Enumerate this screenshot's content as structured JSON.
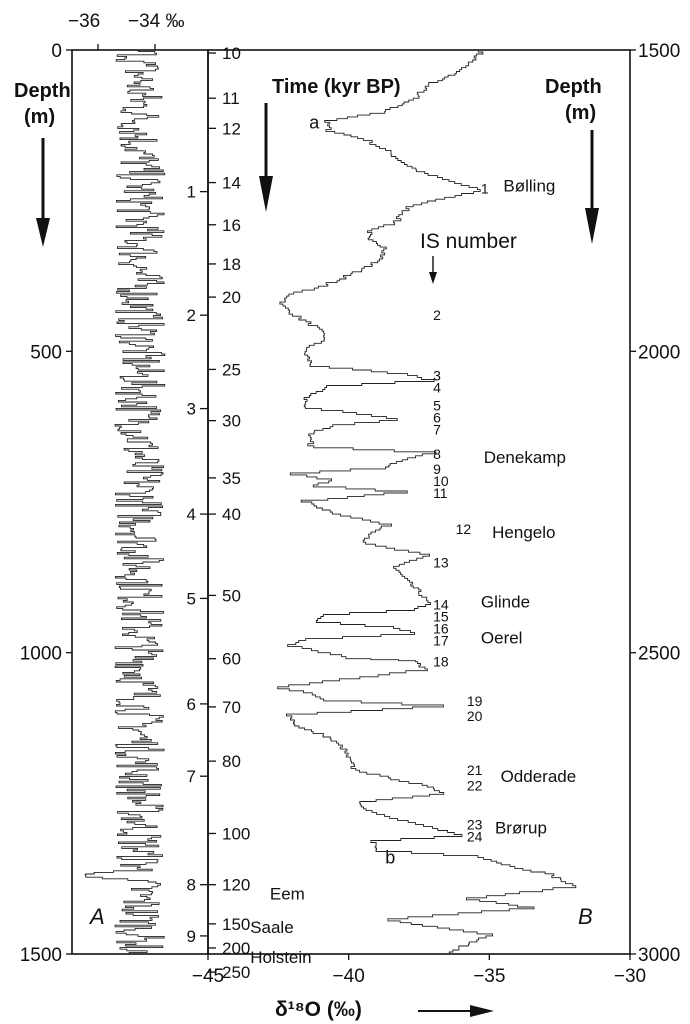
{
  "chart_data": {
    "type": "line",
    "panels": [
      {
        "letter": "A",
        "top_axis_labels": [
          "−36",
          "−34 ‰"
        ],
        "left_axis_title_line1": "Depth",
        "left_axis_title_line2": "(m)",
        "depth_ticks": [
          0,
          500,
          1000,
          1500
        ],
        "depth_range": [
          0,
          1500
        ],
        "delta_range": [
          -38,
          -32
        ]
      },
      {
        "letter": "B",
        "right_axis_title_line1": "Depth",
        "right_axis_title_line2": "(m)",
        "time_axis_title": "Time (kyr BP)",
        "depth_ticks": [
          1500,
          2000,
          2500,
          3000
        ],
        "depth_range": [
          1500,
          3000
        ],
        "delta_ticks": [
          "−45",
          "−40",
          "−35",
          "−30"
        ],
        "delta_range": [
          -45,
          -30
        ],
        "xlabel": "δ¹⁸O (‰)",
        "age_ticks": [
          {
            "label": "10",
            "depth": 1505
          },
          {
            "label": "11",
            "depth": 1580
          },
          {
            "label": "12",
            "depth": 1630
          },
          {
            "label": "14",
            "depth": 1720
          },
          {
            "label": "16",
            "depth": 1790
          },
          {
            "label": "18",
            "depth": 1855
          },
          {
            "label": "20",
            "depth": 1910
          },
          {
            "label": "25",
            "depth": 2030
          },
          {
            "label": "30",
            "depth": 2115
          },
          {
            "label": "35",
            "depth": 2210
          },
          {
            "label": "40",
            "depth": 2270
          },
          {
            "label": "50",
            "depth": 2405
          },
          {
            "label": "60",
            "depth": 2510
          },
          {
            "label": "70",
            "depth": 2590
          },
          {
            "label": "80",
            "depth": 2680
          },
          {
            "label": "100",
            "depth": 2800
          },
          {
            "label": "120",
            "depth": 2885
          },
          {
            "label": "150",
            "depth": 2950
          },
          {
            "label": "200",
            "depth": 2990
          },
          {
            "label": "250",
            "depth": 3030
          }
        ],
        "meter_labels": [
          {
            "label": "1",
            "depth": 1735
          },
          {
            "label": "2",
            "depth": 1940
          },
          {
            "label": "3",
            "depth": 2095
          },
          {
            "label": "4",
            "depth": 2270
          },
          {
            "label": "5",
            "depth": 2410
          },
          {
            "label": "6",
            "depth": 2585
          },
          {
            "label": "7",
            "depth": 2705
          },
          {
            "label": "8",
            "depth": 2885
          },
          {
            "label": "9",
            "depth": 2970
          }
        ],
        "is_number_heading": "IS number",
        "interstadials": [
          {
            "label": "1",
            "depth": 1730,
            "delta": -35.3
          },
          {
            "label": "2",
            "depth": 1940,
            "delta": -37.0
          },
          {
            "label": "3",
            "depth": 2040,
            "delta": -37.0
          },
          {
            "label": "4",
            "depth": 2060,
            "delta": -37.0
          },
          {
            "label": "5",
            "depth": 2090,
            "delta": -37.0
          },
          {
            "label": "6",
            "depth": 2110,
            "delta": -37.0
          },
          {
            "label": "7",
            "depth": 2130,
            "delta": -37.0
          },
          {
            "label": "8",
            "depth": 2170,
            "delta": -37.0
          },
          {
            "label": "9",
            "depth": 2195,
            "delta": -37.0
          },
          {
            "label": "10",
            "depth": 2215,
            "delta": -37.0
          },
          {
            "label": "11",
            "depth": 2235,
            "delta": -37.0
          },
          {
            "label": "12",
            "depth": 2295,
            "delta": -36.2
          },
          {
            "label": "13",
            "depth": 2350,
            "delta": -37.0
          },
          {
            "label": "14",
            "depth": 2420,
            "delta": -37.0
          },
          {
            "label": "15",
            "depth": 2440,
            "delta": -37.0
          },
          {
            "label": "16",
            "depth": 2460,
            "delta": -37.0
          },
          {
            "label": "17",
            "depth": 2480,
            "delta": -37.0
          },
          {
            "label": "18",
            "depth": 2515,
            "delta": -37.0
          },
          {
            "label": "19",
            "depth": 2580,
            "delta": -35.8
          },
          {
            "label": "20",
            "depth": 2605,
            "delta": -35.8
          },
          {
            "label": "21",
            "depth": 2695,
            "delta": -35.8
          },
          {
            "label": "22",
            "depth": 2720,
            "delta": -35.8
          },
          {
            "label": "23",
            "depth": 2785,
            "delta": -35.8
          },
          {
            "label": "24",
            "depth": 2805,
            "delta": -35.8
          }
        ],
        "period_names": [
          {
            "label": "Bølling",
            "depth": 1725,
            "delta": -34.5
          },
          {
            "label": "Denekamp",
            "depth": 2175,
            "delta": -35.2
          },
          {
            "label": "Hengelo",
            "depth": 2300,
            "delta": -34.9
          },
          {
            "label": "Glinde",
            "depth": 2415,
            "delta": -35.3
          },
          {
            "label": "Oerel",
            "depth": 2475,
            "delta": -35.3
          },
          {
            "label": "Odderade",
            "depth": 2705,
            "delta": -34.6
          },
          {
            "label": "Brørup",
            "depth": 2790,
            "delta": -34.8
          },
          {
            "label": "Eem",
            "depth": 2900,
            "delta": -42.8
          },
          {
            "label": "Saale",
            "depth": 2955,
            "delta": -43.5
          },
          {
            "label": "Holstein",
            "depth": 3005,
            "delta": -43.5
          }
        ],
        "markers": [
          {
            "label": "a",
            "depth": 1620,
            "delta": -41.4
          },
          {
            "label": "b",
            "depth": 2840,
            "delta": -38.7
          }
        ],
        "series": [
          {
            "x": [
              -35.2,
              -35.6,
              -36.4,
              -37.2,
              -37.6,
              -38.8,
              -40.8,
              -40.7,
              -39.4,
              -38.6,
              -38.0,
              -37.4,
              -36.0,
              -35.3,
              -37.8,
              -38.4,
              -39.2,
              -39.4,
              -38.6,
              -38.9,
              -39.5,
              -40.2,
              -41.0,
              -42.0,
              -42.4,
              -41.8,
              -41.2,
              -40.8,
              -41.6,
              -41.3,
              -38.0,
              -37.0,
              -40.8,
              -41.5,
              -41.6,
              -39.6,
              -38.2,
              -40.5,
              -41.5,
              -41.3,
              -37.0,
              -37.8,
              -38.8,
              -42.0,
              -40.6,
              -41.3,
              -37.9,
              -41.6,
              -40.5,
              -38.6,
              -39.0,
              -39.5,
              -37.2,
              -38.4,
              -38.0,
              -37.4,
              -37.2,
              -37.6,
              -41.0,
              -41.2,
              -38.5,
              -37.6,
              -41.5,
              -42.1,
              -40.0,
              -37.5,
              -37.3,
              -42.6,
              -41.2,
              -41.0,
              -36.7,
              -42.1,
              -41.8,
              -40.8,
              -40.2,
              -40.0,
              -39.8,
              -39.0,
              -37.5,
              -36.5,
              -39.6,
              -39.2,
              -38.6,
              -37.6,
              -36.9,
              -36.0,
              -39.1,
              -39.0,
              -35.3,
              -34.3,
              -32.8,
              -32.4,
              -32.0,
              -35.7,
              -33.5,
              -38.7,
              -36.5,
              -35.0,
              -36.0,
              -36.5
            ],
            "y": [
              1500,
              1520,
              1545,
              1560,
              1580,
              1605,
              1620,
              1635,
              1650,
              1670,
              1690,
              1705,
              1725,
              1735,
              1760,
              1790,
              1800,
              1815,
              1830,
              1850,
              1865,
              1880,
              1895,
              1905,
              1925,
              1945,
              1960,
              1980,
              2000,
              2025,
              2040,
              2050,
              2060,
              2080,
              2095,
              2105,
              2115,
              2125,
              2140,
              2160,
              2170,
              2180,
              2195,
              2205,
              2215,
              2225,
              2235,
              2250,
              2270,
              2290,
              2300,
              2320,
              2340,
              2360,
              2380,
              2405,
              2420,
              2430,
              2440,
              2450,
              2460,
              2470,
              2480,
              2490,
              2510,
              2515,
              2530,
              2560,
              2570,
              2580,
              2590,
              2605,
              2625,
              2640,
              2660,
              2680,
              2695,
              2705,
              2720,
              2735,
              2750,
              2765,
              2775,
              2785,
              2795,
              2805,
              2815,
              2830,
              2840,
              2855,
              2870,
              2880,
              2890,
              2910,
              2925,
              2945,
              2960,
              2970,
              2990,
              3000
            ]
          }
        ]
      }
    ]
  }
}
